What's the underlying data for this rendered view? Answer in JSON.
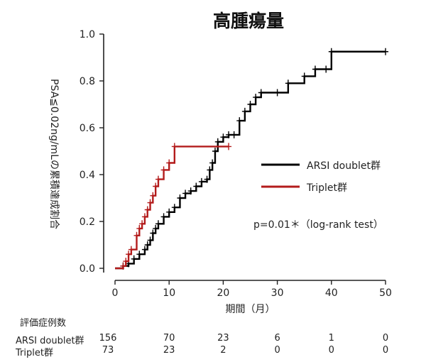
{
  "chart_data": {
    "type": "line",
    "subtype": "kaplan-meier-cumulative-incidence",
    "title": "高腫瘍量",
    "xlabel": "期間（月）",
    "ylabel": "PSA≦0.02ng/mLの累積達成割合",
    "xlim": [
      0,
      50
    ],
    "ylim": [
      0,
      1.0
    ],
    "xticks": [
      0,
      10,
      20,
      30,
      40,
      50
    ],
    "yticks": [
      "0.0",
      "0.2",
      "0.4",
      "0.6",
      "0.8",
      "1.0"
    ],
    "grid": false,
    "legend_position": "right",
    "annotation": "p=0.01＊（log-rank test）",
    "colors": {
      "ARSI doublet群": "#000000",
      "Triplet群": "#b31b1b"
    },
    "series": [
      {
        "name": "ARSI doublet群",
        "color": "#000000",
        "x": [
          0,
          1.5,
          2.5,
          3.5,
          4.5,
          5.5,
          6,
          6.5,
          7,
          7.5,
          8,
          9,
          10,
          11,
          12,
          13,
          14,
          15,
          16,
          17,
          17.5,
          18,
          18.5,
          19,
          20,
          21,
          22,
          23,
          24,
          25,
          26,
          27,
          30,
          32,
          35,
          37,
          39,
          40,
          50
        ],
        "y": [
          0,
          0.01,
          0.02,
          0.04,
          0.06,
          0.08,
          0.1,
          0.12,
          0.15,
          0.17,
          0.19,
          0.22,
          0.24,
          0.26,
          0.3,
          0.32,
          0.33,
          0.35,
          0.37,
          0.38,
          0.42,
          0.45,
          0.5,
          0.54,
          0.56,
          0.57,
          0.57,
          0.63,
          0.67,
          0.7,
          0.73,
          0.75,
          0.75,
          0.79,
          0.82,
          0.85,
          0.85,
          0.925,
          0.925
        ]
      },
      {
        "name": "Triplet群",
        "color": "#b31b1b",
        "x": [
          0,
          1.5,
          2,
          2.5,
          3,
          4,
          4.5,
          5,
          5.5,
          6,
          6.5,
          7,
          7.5,
          8,
          9,
          10,
          11,
          21
        ],
        "y": [
          0,
          0.01,
          0.03,
          0.06,
          0.08,
          0.14,
          0.17,
          0.19,
          0.22,
          0.25,
          0.28,
          0.31,
          0.35,
          0.38,
          0.42,
          0.45,
          0.52,
          0.52
        ]
      }
    ]
  },
  "risk_table": {
    "title": "評価症例数",
    "times": [
      0,
      10,
      20,
      30,
      40,
      50
    ],
    "rows": [
      {
        "label": "ARSI doublet群",
        "counts": [
          "156",
          "70",
          "23",
          "6",
          "1",
          "0"
        ]
      },
      {
        "label": "Triplet群",
        "counts": [
          "73",
          "23",
          "2",
          "0",
          "0",
          "0"
        ]
      }
    ]
  }
}
